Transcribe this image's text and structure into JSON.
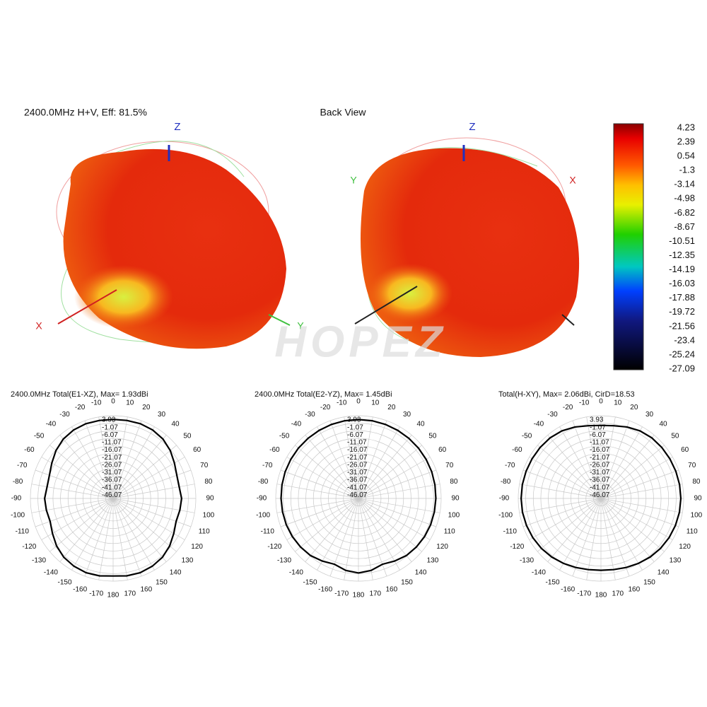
{
  "header": {
    "front_title": "2400.0MHz H+V, Eff: 81.5%",
    "back_title": "Back View",
    "front_axes": [
      "Z",
      "X",
      "Y"
    ],
    "back_axes": [
      "Z",
      "Y",
      "X"
    ],
    "watermark": "HOPEZ"
  },
  "colorbar": {
    "ticks": [
      4.23,
      2.39,
      0.54,
      -1.3,
      -3.14,
      -4.98,
      -6.82,
      -8.67,
      -10.51,
      -12.35,
      -14.19,
      -16.03,
      -17.88,
      -19.72,
      -21.56,
      -23.4,
      -25.24,
      -27.09
    ]
  },
  "chart_data": [
    {
      "type": "polar",
      "title": "2400.0MHz Total(E1-XZ), Max= 1.93dBi",
      "color": "#000000",
      "x": [
        0,
        10,
        20,
        30,
        40,
        50,
        60,
        70,
        80,
        90,
        100,
        110,
        120,
        130,
        140,
        150,
        160,
        170,
        180,
        -170,
        -160,
        -150,
        -140,
        -130,
        -120,
        -110,
        -100,
        -90,
        -80,
        -70,
        -60,
        -50,
        -40,
        -30,
        -20,
        -10
      ],
      "values": [
        1.5,
        1.6,
        1.8,
        1.5,
        0.5,
        -1.5,
        -4,
        -6,
        -6.5,
        -5.5,
        -6,
        -6.5,
        -4.5,
        -2,
        0,
        1.0,
        1.5,
        1.2,
        0.5,
        1.2,
        1.5,
        1.0,
        0,
        -2,
        -4.5,
        -6.5,
        -6,
        -5.5,
        -6.5,
        -6,
        -4,
        -1.5,
        0.5,
        1.5,
        1.8,
        1.6
      ],
      "rlim": [
        -51.07,
        3.93
      ],
      "rticks": [
        3.93,
        -1.07,
        -6.07,
        -11.07,
        -16.07,
        -21.07,
        -26.07,
        -31.07,
        -36.07,
        -41.07,
        -46.07
      ],
      "xticks": [
        0,
        10,
        20,
        30,
        40,
        50,
        60,
        70,
        80,
        90,
        100,
        110,
        120,
        130,
        140,
        150,
        160,
        170,
        180,
        -170,
        -160,
        -150,
        -140,
        -130,
        -120,
        -110,
        -100,
        -90,
        -80,
        -70,
        -60,
        -50,
        -40,
        -30,
        -20,
        -10
      ]
    },
    {
      "type": "polar",
      "title": "2400.0MHz Total(E2-YZ), Max= 1.45dBi",
      "color": "#000000",
      "x": [
        0,
        10,
        20,
        30,
        40,
        50,
        60,
        70,
        80,
        90,
        100,
        110,
        120,
        130,
        140,
        150,
        160,
        170,
        180,
        -170,
        -160,
        -150,
        -140,
        -130,
        -120,
        -110,
        -100,
        -90,
        -80,
        -70,
        -60,
        -50,
        -40,
        -30,
        -20,
        -10
      ],
      "values": [
        1.4,
        1.4,
        1.3,
        1.2,
        1.1,
        1.0,
        0.9,
        0.8,
        0.6,
        0.4,
        0.2,
        0,
        -0.3,
        -0.8,
        -1.5,
        -3,
        -4.5,
        -2.5,
        -1.5,
        -2.5,
        -4.5,
        -3,
        -1.5,
        -0.8,
        -0.3,
        0,
        0.2,
        0.4,
        0.6,
        0.8,
        0.9,
        1.0,
        1.1,
        1.2,
        1.3,
        1.4
      ],
      "rlim": [
        -51.07,
        3.93
      ],
      "rticks": [
        3.93,
        -1.07,
        -6.07,
        -11.07,
        -16.07,
        -21.07,
        -26.07,
        -31.07,
        -36.07,
        -41.07,
        -46.07
      ],
      "xticks": [
        0,
        10,
        20,
        30,
        40,
        50,
        60,
        70,
        80,
        90,
        100,
        110,
        120,
        130,
        140,
        150,
        160,
        170,
        180,
        -170,
        -160,
        -150,
        -140,
        -130,
        -120,
        -110,
        -100,
        -90,
        -80,
        -70,
        -60,
        -50,
        -40,
        -30,
        -20,
        -10
      ]
    },
    {
      "type": "polar",
      "title": "Total(H-XY), Max= 2.06dBi, CirD=18.53",
      "color": "#000000",
      "x": [
        0,
        10,
        20,
        30,
        40,
        50,
        60,
        70,
        80,
        90,
        100,
        110,
        120,
        130,
        140,
        150,
        160,
        170,
        180,
        -170,
        -160,
        -150,
        -140,
        -130,
        -120,
        -110,
        -100,
        -90,
        -80,
        -70,
        -60,
        -50,
        -40,
        -30,
        -20,
        -10
      ],
      "values": [
        -2.5,
        -2,
        -0.5,
        0.8,
        1.5,
        1.7,
        1.8,
        1.9,
        2.0,
        2.06,
        1.9,
        1.6,
        1.2,
        0.6,
        -0.2,
        -1.2,
        -2.2,
        -3,
        -3.3,
        -3,
        -2.2,
        -1.2,
        -0.2,
        0.6,
        1.2,
        1.6,
        1.9,
        2.0,
        2.0,
        1.9,
        1.8,
        1.7,
        1.5,
        0.8,
        -0.5,
        -2
      ],
      "rlim": [
        -51.07,
        3.93
      ],
      "rticks": [
        3.93,
        -1.07,
        -6.07,
        -11.07,
        -16.07,
        -21.07,
        -26.07,
        -31.07,
        -36.07,
        -41.07,
        -46.07
      ],
      "xticks": [
        0,
        10,
        20,
        30,
        40,
        50,
        60,
        70,
        80,
        90,
        100,
        110,
        120,
        130,
        140,
        150,
        160,
        170,
        180,
        -170,
        -160,
        -150,
        -140,
        -130,
        -120,
        -110,
        -100,
        -90,
        -80,
        -70,
        -60,
        -50,
        -40,
        -30,
        -20,
        -10
      ]
    }
  ]
}
